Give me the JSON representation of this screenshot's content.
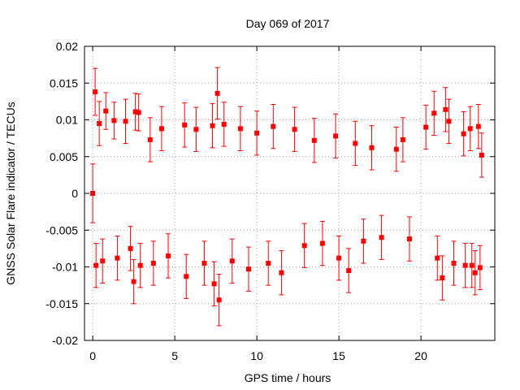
{
  "chart_data": {
    "type": "scatter",
    "title": "Day 069 of 2017",
    "xlabel": "GPS time / hours",
    "ylabel": "GNSS Solar Flare indicator / TECUs",
    "xlim": [
      -0.5,
      24.5
    ],
    "ylim": [
      -0.02,
      0.02
    ],
    "xticks": [
      0,
      5,
      10,
      15,
      20
    ],
    "xtick_labels": [
      "0",
      "5",
      "10",
      "15",
      "20"
    ],
    "yticks": [
      -0.02,
      -0.015,
      -0.01,
      -0.005,
      0,
      0.005,
      0.01,
      0.015,
      0.02
    ],
    "ytick_labels": [
      "-0.02",
      "-0.015",
      "-0.01",
      "-0.005",
      "0",
      "0.005",
      "0.01",
      "0.015",
      "0.02"
    ],
    "grid": true,
    "series": [
      {
        "name": "solar flare indicator",
        "color": "#ff0000",
        "marker": "square",
        "error_bars": true,
        "points": [
          {
            "x": 0.0,
            "y": 0.0,
            "err": 0.004
          },
          {
            "x": 0.15,
            "y": 0.0138,
            "err": 0.0032
          },
          {
            "x": 0.2,
            "y": -0.0098,
            "err": 0.003
          },
          {
            "x": 0.4,
            "y": 0.0095,
            "err": 0.003
          },
          {
            "x": 0.6,
            "y": -0.0092,
            "err": 0.003
          },
          {
            "x": 0.8,
            "y": 0.0112,
            "err": 0.0025
          },
          {
            "x": 1.3,
            "y": 0.0099,
            "err": 0.0025
          },
          {
            "x": 1.5,
            "y": -0.0088,
            "err": 0.003
          },
          {
            "x": 2.0,
            "y": 0.0098,
            "err": 0.003
          },
          {
            "x": 2.3,
            "y": -0.0075,
            "err": 0.003
          },
          {
            "x": 2.5,
            "y": -0.012,
            "err": 0.003
          },
          {
            "x": 2.6,
            "y": 0.0111,
            "err": 0.0025
          },
          {
            "x": 2.8,
            "y": 0.011,
            "err": 0.0025
          },
          {
            "x": 2.9,
            "y": -0.0098,
            "err": 0.003
          },
          {
            "x": 3.5,
            "y": 0.0073,
            "err": 0.003
          },
          {
            "x": 3.7,
            "y": -0.0095,
            "err": 0.003
          },
          {
            "x": 4.2,
            "y": 0.0088,
            "err": 0.003
          },
          {
            "x": 4.6,
            "y": -0.0085,
            "err": 0.003
          },
          {
            "x": 5.6,
            "y": 0.0093,
            "err": 0.003
          },
          {
            "x": 5.7,
            "y": -0.0113,
            "err": 0.003
          },
          {
            "x": 6.3,
            "y": 0.0087,
            "err": 0.003
          },
          {
            "x": 6.8,
            "y": -0.0095,
            "err": 0.003
          },
          {
            "x": 7.3,
            "y": 0.0092,
            "err": 0.003
          },
          {
            "x": 7.4,
            "y": -0.0123,
            "err": 0.003
          },
          {
            "x": 7.6,
            "y": 0.0136,
            "err": 0.0035
          },
          {
            "x": 7.7,
            "y": -0.0145,
            "err": 0.0035
          },
          {
            "x": 8.0,
            "y": 0.0094,
            "err": 0.003
          },
          {
            "x": 8.5,
            "y": -0.0092,
            "err": 0.003
          },
          {
            "x": 9.0,
            "y": 0.0088,
            "err": 0.003
          },
          {
            "x": 9.5,
            "y": -0.0103,
            "err": 0.003
          },
          {
            "x": 10.0,
            "y": 0.0082,
            "err": 0.003
          },
          {
            "x": 10.7,
            "y": -0.0095,
            "err": 0.003
          },
          {
            "x": 11.0,
            "y": 0.0091,
            "err": 0.003
          },
          {
            "x": 11.5,
            "y": -0.0108,
            "err": 0.003
          },
          {
            "x": 12.3,
            "y": 0.0087,
            "err": 0.003
          },
          {
            "x": 12.9,
            "y": -0.0071,
            "err": 0.003
          },
          {
            "x": 13.5,
            "y": 0.0072,
            "err": 0.003
          },
          {
            "x": 14.0,
            "y": -0.0068,
            "err": 0.003
          },
          {
            "x": 14.8,
            "y": 0.0078,
            "err": 0.003
          },
          {
            "x": 15.0,
            "y": -0.0088,
            "err": 0.003
          },
          {
            "x": 15.6,
            "y": -0.0105,
            "err": 0.003
          },
          {
            "x": 16.0,
            "y": 0.0068,
            "err": 0.003
          },
          {
            "x": 16.5,
            "y": -0.0065,
            "err": 0.003
          },
          {
            "x": 17.0,
            "y": 0.0062,
            "err": 0.003
          },
          {
            "x": 17.6,
            "y": -0.006,
            "err": 0.003
          },
          {
            "x": 18.5,
            "y": 0.006,
            "err": 0.003
          },
          {
            "x": 18.9,
            "y": 0.0073,
            "err": 0.003
          },
          {
            "x": 19.3,
            "y": -0.0062,
            "err": 0.003
          },
          {
            "x": 20.3,
            "y": 0.009,
            "err": 0.003
          },
          {
            "x": 20.8,
            "y": 0.0109,
            "err": 0.003
          },
          {
            "x": 21.0,
            "y": -0.0088,
            "err": 0.003
          },
          {
            "x": 21.3,
            "y": -0.0115,
            "err": 0.003
          },
          {
            "x": 21.5,
            "y": 0.0114,
            "err": 0.003
          },
          {
            "x": 21.7,
            "y": 0.0098,
            "err": 0.003
          },
          {
            "x": 22.0,
            "y": -0.0095,
            "err": 0.003
          },
          {
            "x": 22.6,
            "y": 0.0081,
            "err": 0.003
          },
          {
            "x": 22.7,
            "y": -0.0098,
            "err": 0.003
          },
          {
            "x": 23.0,
            "y": 0.0088,
            "err": 0.003
          },
          {
            "x": 23.1,
            "y": -0.0098,
            "err": 0.003
          },
          {
            "x": 23.3,
            "y": -0.0108,
            "err": 0.003
          },
          {
            "x": 23.5,
            "y": 0.0091,
            "err": 0.003
          },
          {
            "x": 23.6,
            "y": -0.0101,
            "err": 0.003
          },
          {
            "x": 23.7,
            "y": 0.0052,
            "err": 0.003
          }
        ]
      }
    ]
  }
}
